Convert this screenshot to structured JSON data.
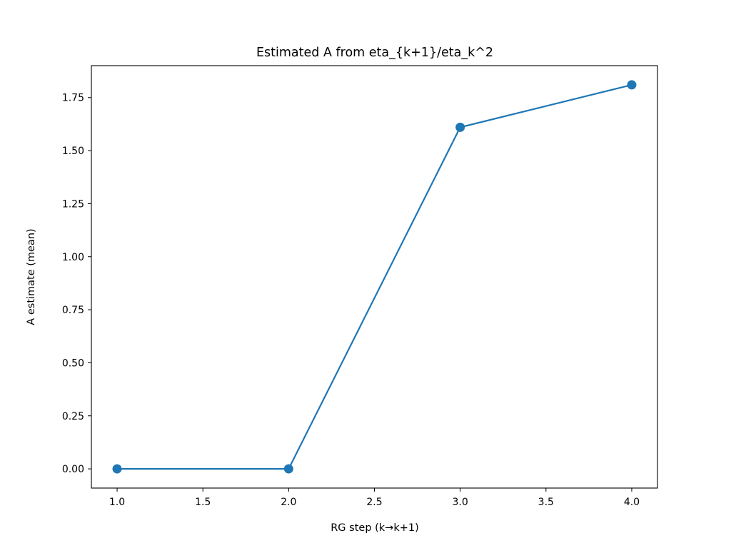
{
  "chart_data": {
    "type": "line",
    "title": "Estimated A from eta_{k+1}/eta_k^2",
    "xlabel": "RG step (k→k+1)",
    "ylabel": "A estimate (mean)",
    "xlim": [
      0.85,
      4.15
    ],
    "ylim": [
      -0.0905,
      1.9005
    ],
    "xticks": [
      1.0,
      1.5,
      2.0,
      2.5,
      3.0,
      3.5,
      4.0
    ],
    "xtick_labels": [
      "1.0",
      "1.5",
      "2.0",
      "2.5",
      "3.0",
      "3.5",
      "4.0"
    ],
    "yticks": [
      0.0,
      0.25,
      0.5,
      0.75,
      1.0,
      1.25,
      1.5,
      1.75
    ],
    "ytick_labels": [
      "0.00",
      "0.25",
      "0.50",
      "0.75",
      "1.00",
      "1.25",
      "1.50",
      "1.75"
    ],
    "grid": false,
    "series": [
      {
        "color": "#1f77b4",
        "marker": "circle",
        "x": [
          1.0,
          2.0,
          3.0,
          4.0
        ],
        "y": [
          0.0,
          0.0,
          1.61,
          1.81
        ]
      }
    ]
  }
}
